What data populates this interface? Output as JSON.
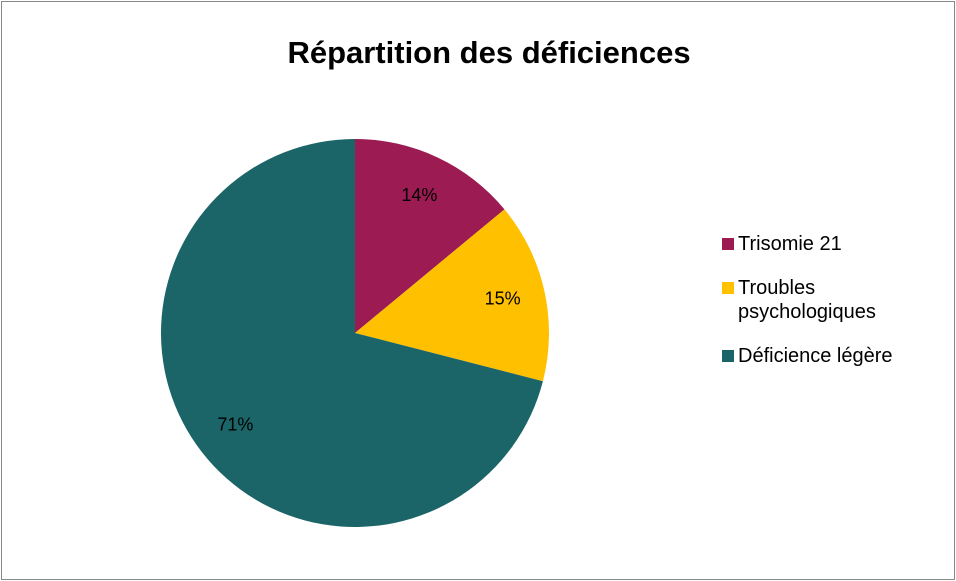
{
  "chart_data": {
    "type": "pie",
    "title": "Répartition des déficiences",
    "categories": [
      "Trisomie 21",
      "Troubles psychologiques",
      "Déficience légère"
    ],
    "values": [
      14,
      15,
      71
    ],
    "value_labels": [
      "14%",
      "15%",
      "71%"
    ],
    "colors": [
      "#9b1b52",
      "#ffc000",
      "#1b6467"
    ],
    "legend": "right"
  }
}
